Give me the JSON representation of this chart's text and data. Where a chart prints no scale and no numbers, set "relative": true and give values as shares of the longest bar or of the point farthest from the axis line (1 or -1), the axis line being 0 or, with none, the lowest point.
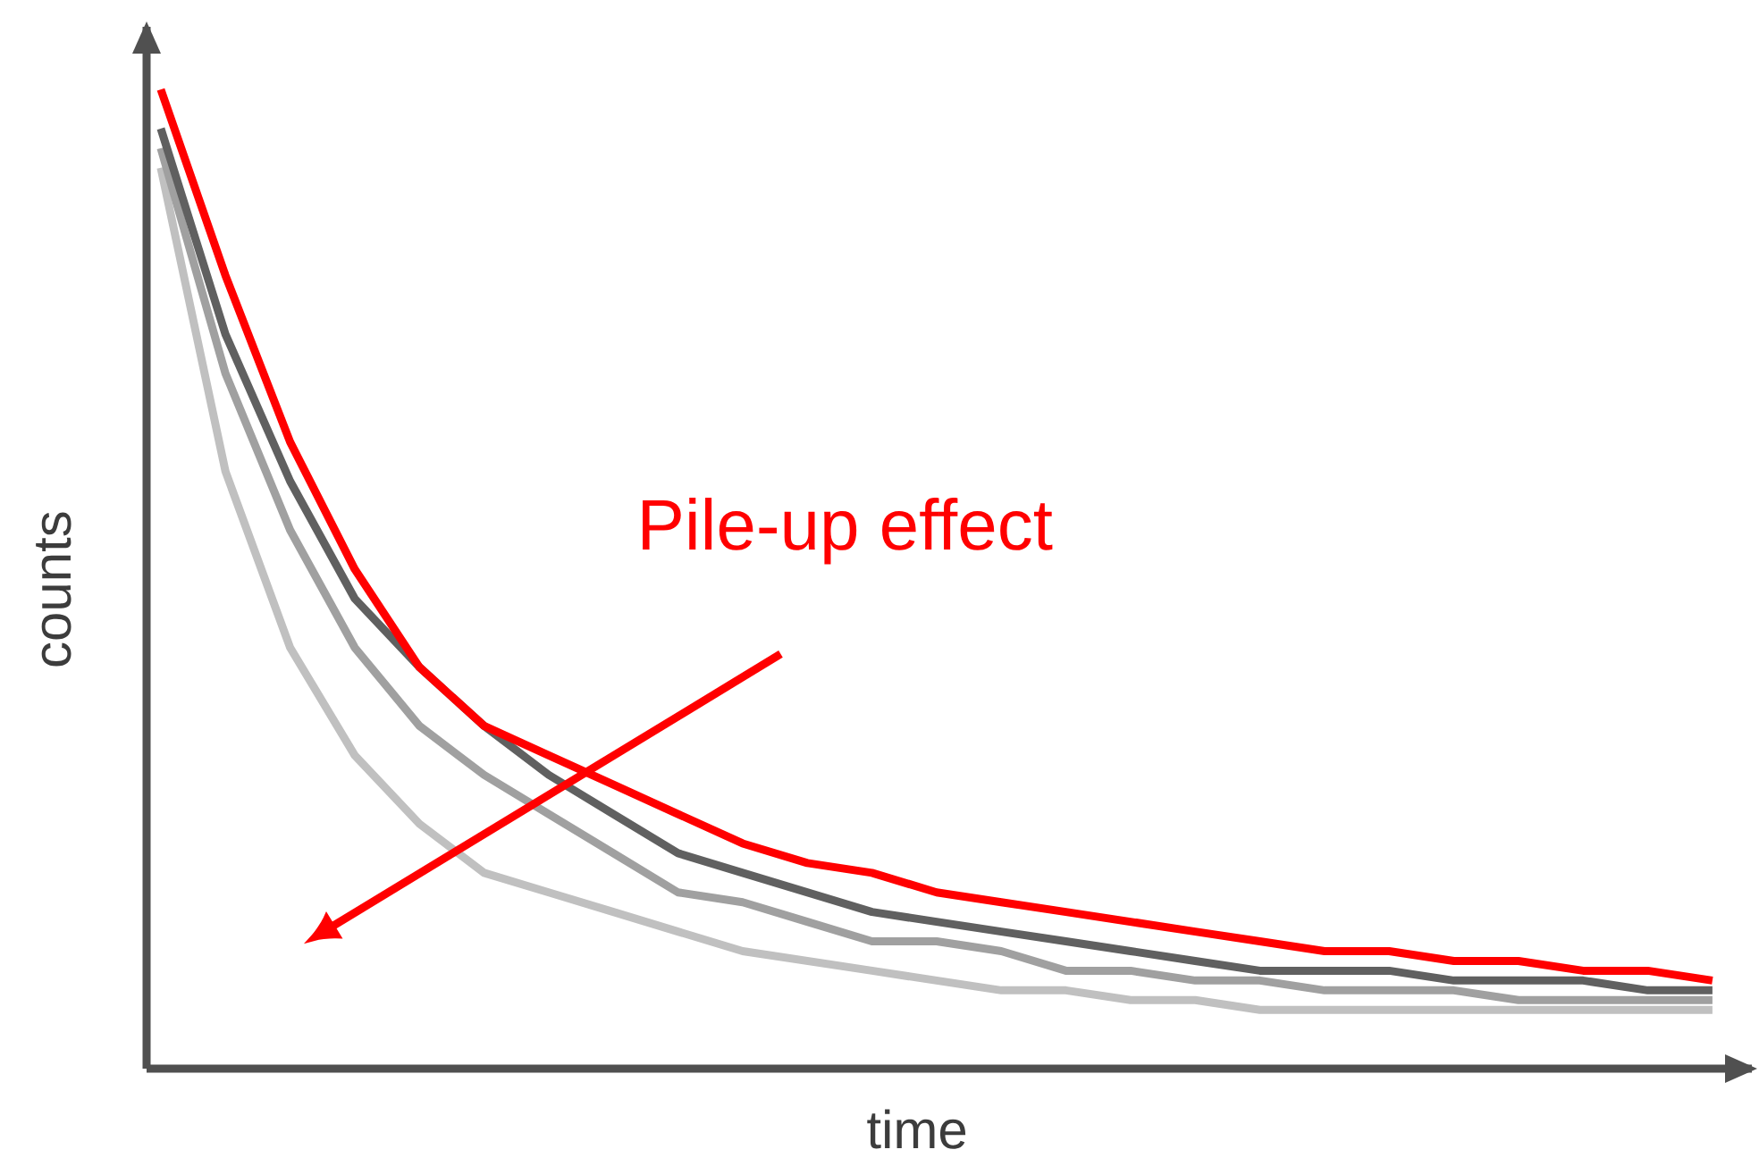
{
  "chart_data": {
    "type": "line",
    "relative": true,
    "xlabel": "time",
    "ylabel": "counts",
    "annotations": [
      "Pile-up effect"
    ],
    "tick_labels": false,
    "marker": "none",
    "line_style": "solid",
    "categories": [
      null,
      null,
      null,
      null,
      null,
      null,
      null,
      null,
      null,
      null,
      null,
      null,
      null,
      null,
      null,
      null,
      null,
      null,
      null,
      null,
      null,
      null,
      null,
      null,
      null
    ],
    "series": [
      {
        "color": "#c0c0c0",
        "values": [
          0.92,
          0.61,
          0.43,
          0.32,
          0.25,
          0.2,
          0.18,
          0.16,
          0.14,
          0.12,
          0.11,
          0.1,
          0.09,
          0.08,
          0.08,
          0.07,
          0.07,
          0.06,
          0.06,
          0.06,
          0.06,
          0.06,
          0.06,
          0.06,
          0.06
        ]
      },
      {
        "color": "#a0a0a0",
        "values": [
          0.94,
          0.71,
          0.55,
          0.43,
          0.35,
          0.3,
          0.26,
          0.22,
          0.18,
          0.17,
          0.15,
          0.13,
          0.13,
          0.12,
          0.1,
          0.1,
          0.09,
          0.09,
          0.08,
          0.08,
          0.08,
          0.07,
          0.07,
          0.07,
          0.07
        ]
      },
      {
        "color": "#606060",
        "values": [
          0.96,
          0.75,
          0.6,
          0.48,
          0.41,
          0.35,
          0.3,
          0.26,
          0.22,
          0.2,
          0.18,
          0.16,
          0.15,
          0.14,
          0.13,
          0.12,
          0.11,
          0.1,
          0.1,
          0.1,
          0.09,
          0.09,
          0.09,
          0.08,
          0.08
        ]
      },
      {
        "color": "#ff0000",
        "values": [
          1.0,
          0.81,
          0.64,
          0.51,
          0.41,
          0.35,
          0.32,
          0.29,
          0.26,
          0.23,
          0.21,
          0.2,
          0.18,
          0.17,
          0.16,
          0.15,
          0.14,
          0.13,
          0.12,
          0.12,
          0.11,
          0.11,
          0.1,
          0.1,
          0.09
        ]
      }
    ]
  }
}
